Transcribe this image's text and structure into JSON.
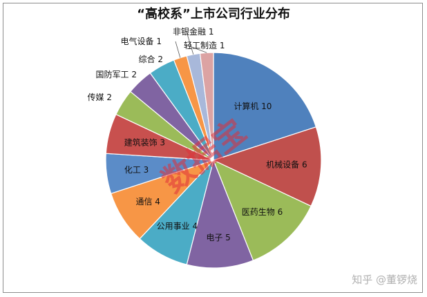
{
  "chart_data": {
    "type": "pie",
    "title": "“高校系”上市公司行业分布",
    "slices": [
      {
        "label": "计算机",
        "value": 10,
        "color": "#4f81bd"
      },
      {
        "label": "机械设备",
        "value": 6,
        "color": "#c0504d"
      },
      {
        "label": "医药生物",
        "value": 6,
        "color": "#9bbb59"
      },
      {
        "label": "电子",
        "value": 5,
        "color": "#8064a2"
      },
      {
        "label": "公用事业",
        "value": 4,
        "color": "#4bacc6"
      },
      {
        "label": "通信",
        "value": 4,
        "color": "#f79646"
      },
      {
        "label": "化工",
        "value": 3,
        "color": "#5b8cc8"
      },
      {
        "label": "建筑装饰",
        "value": 3,
        "color": "#c8504e"
      },
      {
        "label": "传媒",
        "value": 2,
        "color": "#9bbb59"
      },
      {
        "label": "国防军工",
        "value": 2,
        "color": "#8064a2"
      },
      {
        "label": "综合",
        "value": 2,
        "color": "#4bacc6"
      },
      {
        "label": "电气设备",
        "value": 1,
        "color": "#f79646"
      },
      {
        "label": "非银金融",
        "value": 1,
        "color": "#a8b8da"
      },
      {
        "label": "轻工制造",
        "value": 1,
        "color": "#dca3a3"
      }
    ]
  },
  "overlay": {
    "watermark_text": "数据宝",
    "credit_text": "知乎 @董锣烧"
  }
}
